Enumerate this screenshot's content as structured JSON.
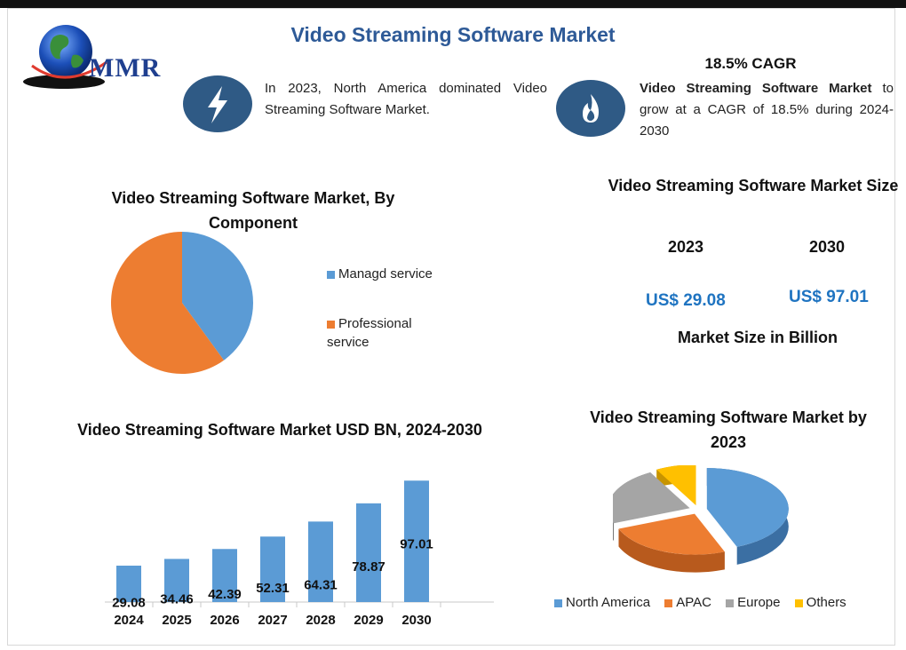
{
  "page": {
    "title": "Video Streaming Software Market",
    "logo_text": "MMR"
  },
  "info_left": {
    "icon": "lightning-bolt-icon",
    "text": "In 2023, North America dominated Video Streaming Software Market."
  },
  "info_right": {
    "icon": "flame-icon",
    "heading": "18.5% CAGR",
    "bold_text": "Video Streaming Software Market",
    "text": "to grow at a CAGR of 18.5% during 2024-2030"
  },
  "market_size": {
    "title": "Video Streaming Software Market Size",
    "years": [
      "2023",
      "2030"
    ],
    "values": [
      "US$ 29.08",
      "US$ 97.01"
    ],
    "unit_label": "Market Size in Billion"
  },
  "colors": {
    "blue": "#5b9bd5",
    "orange": "#ed7d31",
    "gray": "#a5a5a5",
    "yellow": "#ffc000",
    "title_blue": "#2e5a97",
    "value_blue": "#1f74c1"
  },
  "chart_data": [
    {
      "type": "pie",
      "title": "Video Streaming Software  Market, By Component",
      "categories": [
        "Managd service",
        "Professional service"
      ],
      "values": [
        40,
        60
      ],
      "legend": "right"
    },
    {
      "type": "bar",
      "title": "Video Streaming Software Market USD BN, 2024-2030",
      "categories": [
        "2024",
        "2025",
        "2026",
        "2027",
        "2028",
        "2029",
        "2030"
      ],
      "values": [
        29.08,
        34.46,
        42.39,
        52.31,
        64.31,
        78.87,
        97.01
      ],
      "data_labels": [
        "29.08",
        "34.46",
        "42.39",
        "52.31",
        "64.31",
        "78.87",
        "97.01"
      ],
      "ylim": [
        0,
        105
      ],
      "grid": false
    },
    {
      "type": "pie",
      "title": "Video Streaming Software Market by 2023",
      "categories": [
        "North America",
        "APAC",
        "Europe",
        "Others"
      ],
      "values": [
        44,
        25,
        23,
        8
      ],
      "legend": "bottom"
    }
  ]
}
